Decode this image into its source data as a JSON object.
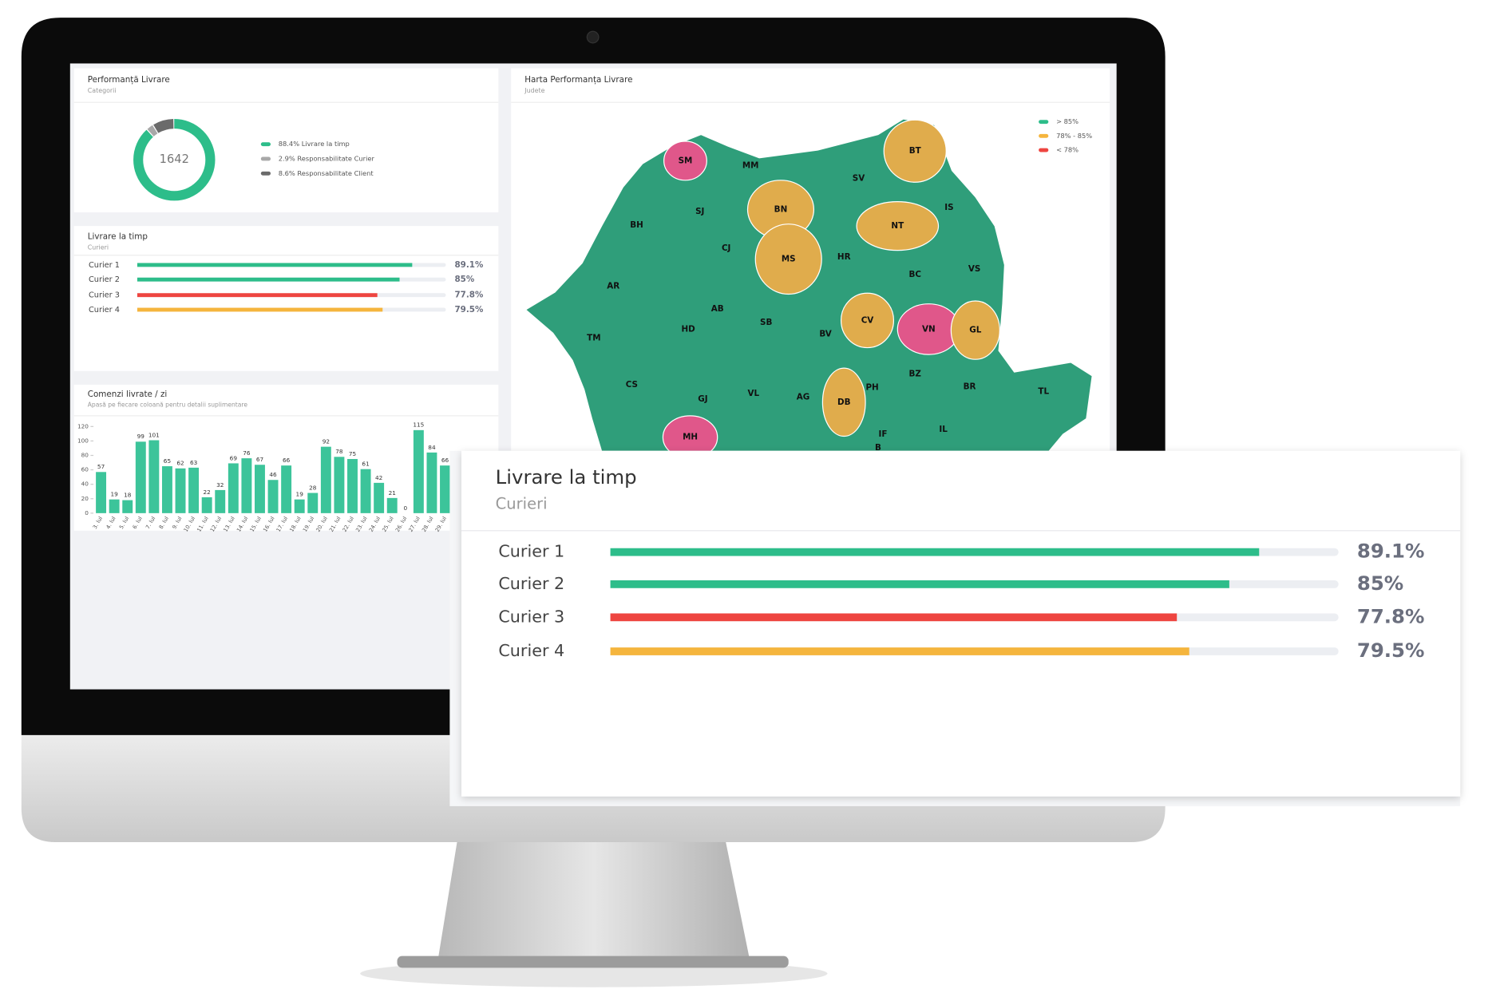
{
  "donut": {
    "title": "Performanță Livrare",
    "subtitle": "Categorii",
    "center": "1642",
    "segments": [
      {
        "label": "88.4% Livrare la timp",
        "value": 88.4,
        "color": "#2dbd8a"
      },
      {
        "label": "2.9% Responsabilitate Curier",
        "value": 2.9,
        "color": "#a8a8a8"
      },
      {
        "label": "8.6% Responsabilitate Client",
        "value": 8.6,
        "color": "#6b6b6b"
      }
    ]
  },
  "couriers": {
    "title": "Livrare la timp",
    "subtitle": "Curieri",
    "max": 100,
    "rows": [
      {
        "name": "Curier 1",
        "value": 89.1,
        "value_label": "89.1%",
        "color": "#2dbd8a"
      },
      {
        "name": "Curier 2",
        "value": 85,
        "value_label": "85%",
        "color": "#2dbd8a"
      },
      {
        "name": "Curier 3",
        "value": 77.8,
        "value_label": "77.8%",
        "color": "#ee4540"
      },
      {
        "name": "Curier 4",
        "value": 79.5,
        "value_label": "79.5%",
        "color": "#f5b53d"
      }
    ]
  },
  "orders": {
    "title": "Comenzi livrate / zi",
    "subtitle": "Apasă pe fiecare coloană pentru detalii suplimentare",
    "color": "#3cc49a",
    "categories": [
      "3. Iul",
      "4. Iul",
      "5. Iul",
      "6. Iul",
      "7. Iul",
      "8. Iul",
      "9. Iul",
      "10. Iul",
      "11. Iul",
      "12. Iul",
      "13. Iul",
      "14. Iul",
      "15. Iul",
      "16. Iul",
      "17. Iul",
      "18. Iul",
      "19. Iul",
      "20. Iul",
      "21. Iul",
      "22. Iul",
      "23. Iul",
      "24. Iul",
      "25. Iul",
      "26. Iul",
      "27. Iul",
      "28. Iul",
      "29. Iul"
    ],
    "values": [
      57,
      19,
      18,
      99,
      101,
      65,
      62,
      63,
      22,
      32,
      69,
      76,
      67,
      46,
      66,
      19,
      28,
      92,
      78,
      75,
      61,
      42,
      21,
      0,
      115,
      84,
      66
    ],
    "ylim": [
      0,
      120
    ],
    "yticks": [
      0,
      20,
      40,
      60,
      80,
      100,
      120
    ]
  },
  "map": {
    "title": "Harta Performanța Livrare",
    "subtitle": "Judete",
    "base_color": "#2f9e7a",
    "legend": [
      {
        "label": "> 85%",
        "color": "#2dbd8a"
      },
      {
        "label": "78% - 85%",
        "color": "#f5b53d"
      },
      {
        "label": "< 78%",
        "color": "#ee4540"
      }
    ],
    "counties": [
      {
        "code": "SM",
        "color": "#e0578a"
      },
      {
        "code": "MM",
        "color": "#2f9e7a"
      },
      {
        "code": "SV",
        "color": "#2f9e7a"
      },
      {
        "code": "BT",
        "color": "#e0ac4c"
      },
      {
        "code": "BN",
        "color": "#e0ac4c"
      },
      {
        "code": "IS",
        "color": "#2f9e7a"
      },
      {
        "code": "SJ",
        "color": "#2f9e7a"
      },
      {
        "code": "BH",
        "color": "#2f9e7a"
      },
      {
        "code": "NT",
        "color": "#e0ac4c"
      },
      {
        "code": "CJ",
        "color": "#2f9e7a"
      },
      {
        "code": "MS",
        "color": "#e0ac4c"
      },
      {
        "code": "HR",
        "color": "#2f9e7a"
      },
      {
        "code": "VS",
        "color": "#2f9e7a"
      },
      {
        "code": "BC",
        "color": "#2f9e7a"
      },
      {
        "code": "AR",
        "color": "#2f9e7a"
      },
      {
        "code": "AB",
        "color": "#2f9e7a"
      },
      {
        "code": "SB",
        "color": "#2f9e7a"
      },
      {
        "code": "CV",
        "color": "#e0ac4c"
      },
      {
        "code": "VN",
        "color": "#e0578a"
      },
      {
        "code": "GL",
        "color": "#e0ac4c"
      },
      {
        "code": "TM",
        "color": "#2f9e7a"
      },
      {
        "code": "HD",
        "color": "#2f9e7a"
      },
      {
        "code": "BV",
        "color": "#2f9e7a"
      },
      {
        "code": "BZ",
        "color": "#2f9e7a"
      },
      {
        "code": "BR",
        "color": "#2f9e7a"
      },
      {
        "code": "TL",
        "color": "#2f9e7a"
      },
      {
        "code": "CS",
        "color": "#2f9e7a"
      },
      {
        "code": "GJ",
        "color": "#2f9e7a"
      },
      {
        "code": "VL",
        "color": "#2f9e7a"
      },
      {
        "code": "AG",
        "color": "#2f9e7a"
      },
      {
        "code": "DB",
        "color": "#e0ac4c"
      },
      {
        "code": "PH",
        "color": "#2f9e7a"
      },
      {
        "code": "MH",
        "color": "#e0578a"
      },
      {
        "code": "IF",
        "color": "#2f9e7a"
      },
      {
        "code": "IL",
        "color": "#2f9e7a"
      },
      {
        "code": "B",
        "color": "#2f9e7a"
      }
    ]
  }
}
